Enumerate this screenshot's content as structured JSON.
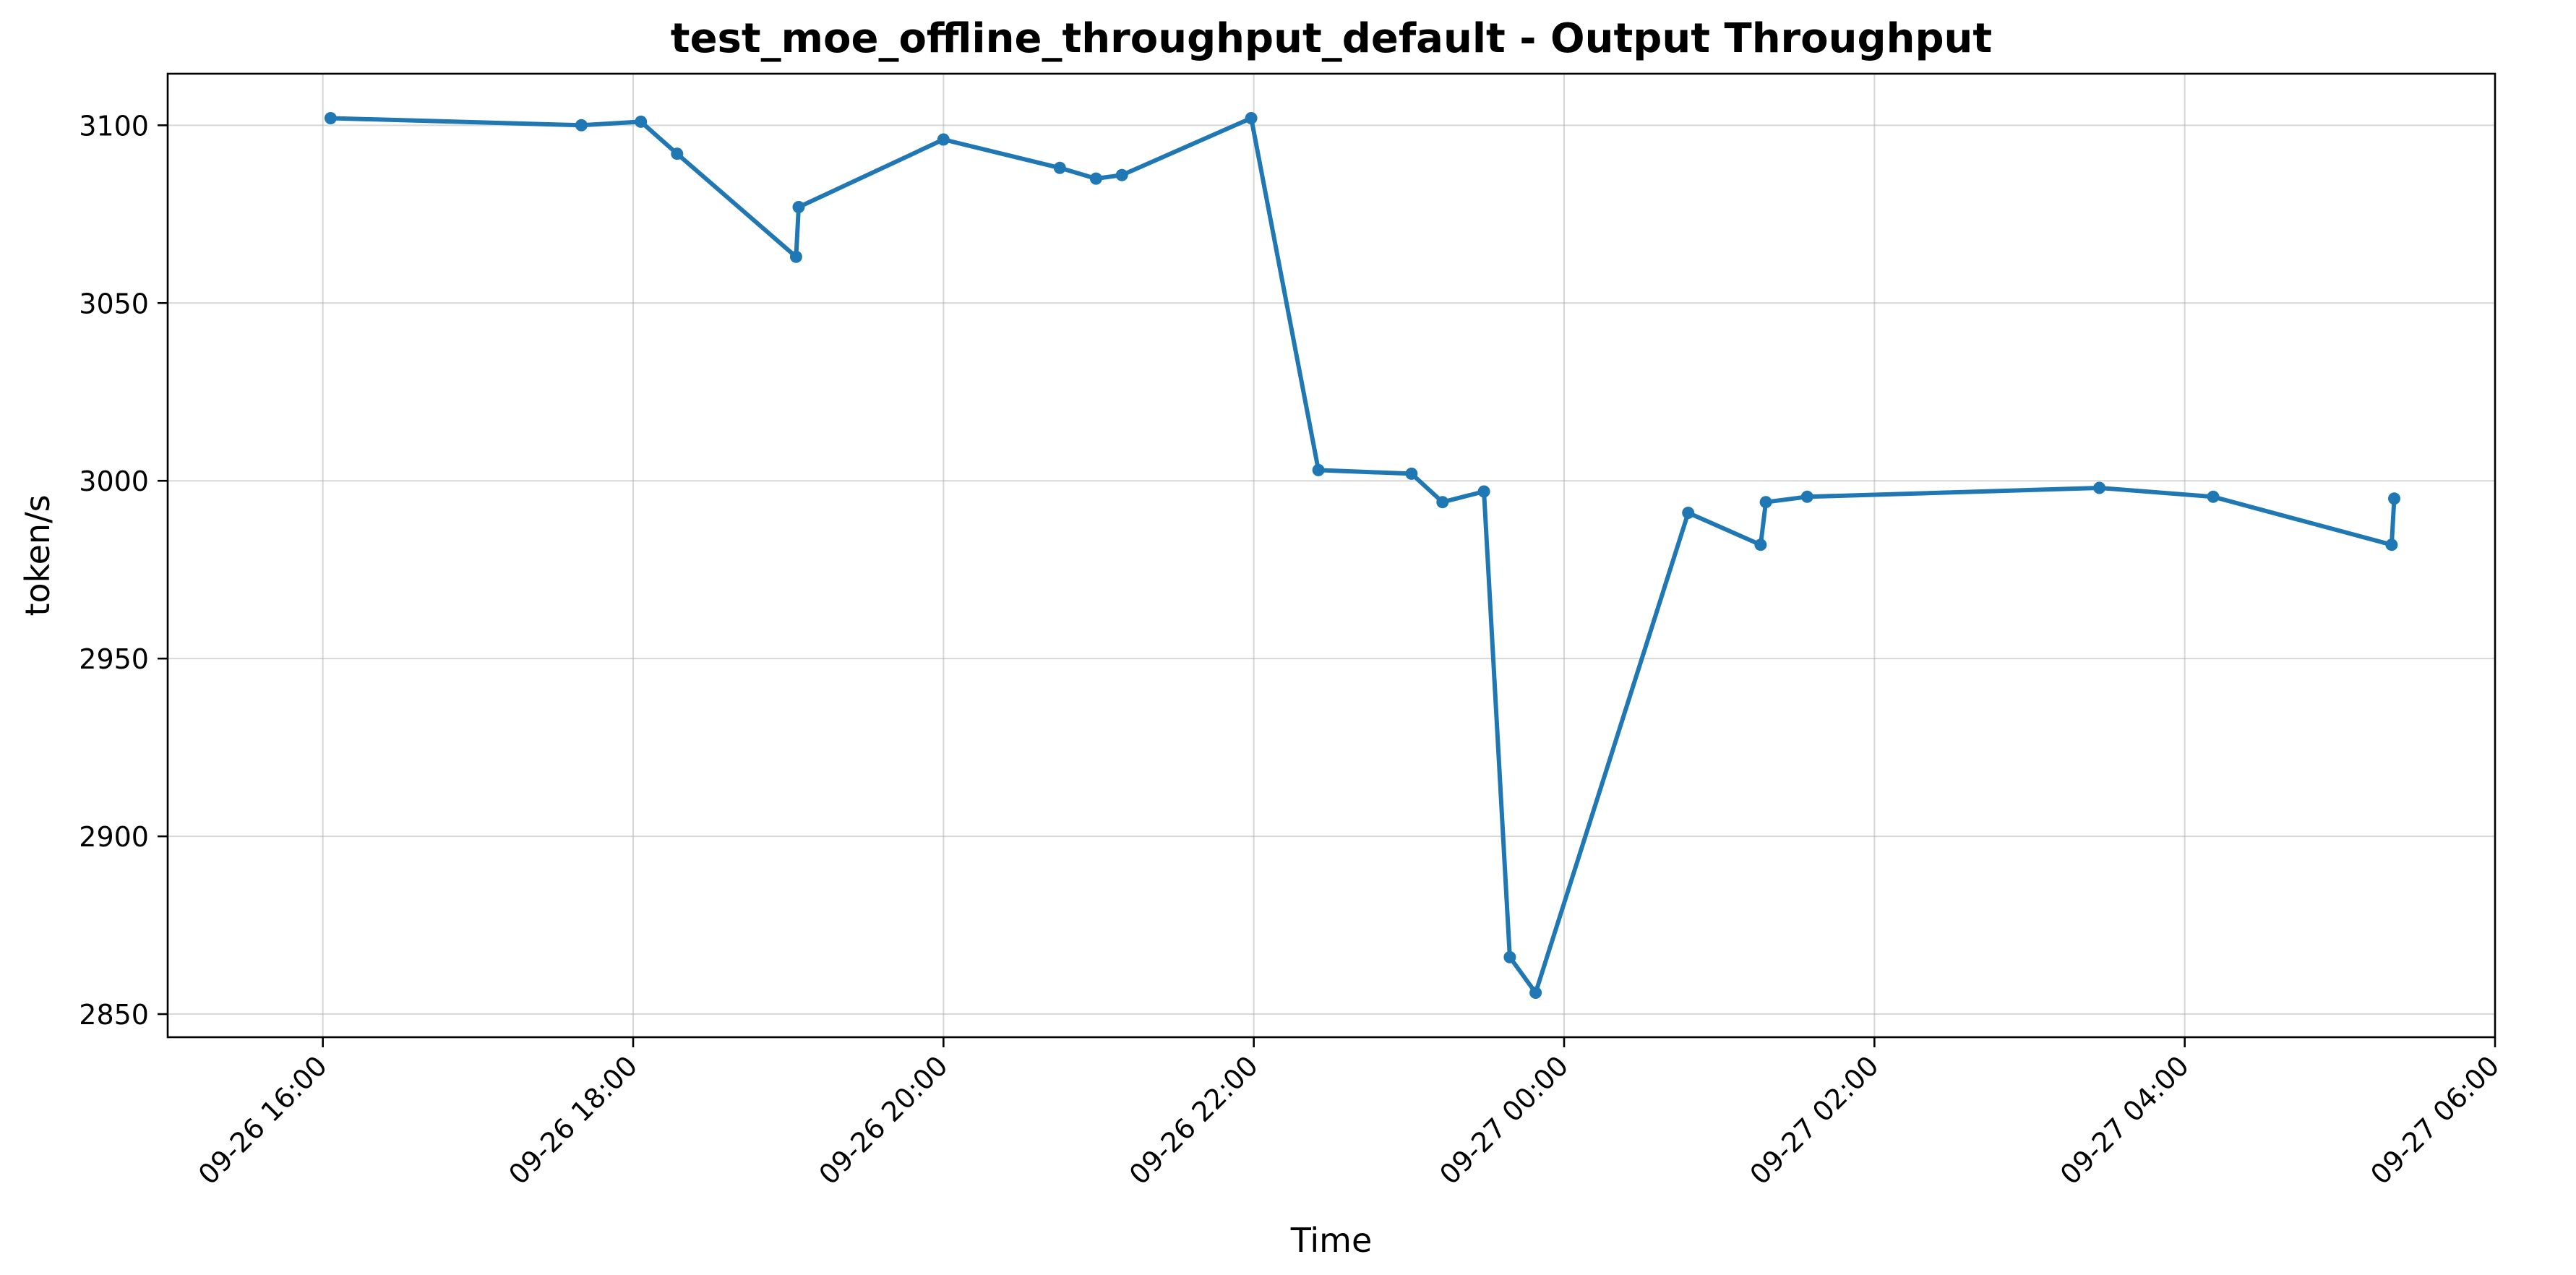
{
  "chart_data": {
    "type": "line",
    "title": "test_moe_offline_throughput_default - Output Throughput",
    "xlabel": "Time",
    "ylabel": "token/s",
    "ylim": [
      2843.5,
      3114.5
    ],
    "xlim": [
      "2025-09-26 15:00",
      "2025-09-27 06:00"
    ],
    "x_ticks": [
      "09-26 16:00",
      "09-26 18:00",
      "09-26 20:00",
      "09-26 22:00",
      "09-27 00:00",
      "09-27 02:00",
      "09-27 04:00",
      "09-27 06:00"
    ],
    "y_ticks": [
      2850,
      2900,
      2950,
      3000,
      3050,
      3100
    ],
    "grid": true,
    "legend": "none",
    "colors": {
      "line": "#1f77b4"
    },
    "series": [
      {
        "x": [
          "09-26 16:03",
          "09-26 17:40",
          "09-26 18:03",
          "09-26 18:17",
          "09-26 19:03",
          "09-26 19:04",
          "09-26 20:00",
          "09-26 20:45",
          "09-26 20:59",
          "09-26 21:09",
          "09-26 21:59",
          "09-26 22:25",
          "09-26 23:01",
          "09-26 23:13",
          "09-26 23:29",
          "09-26 23:39",
          "09-26 23:49",
          "09-27 00:48",
          "09-27 01:16",
          "09-27 01:18",
          "09-27 01:34",
          "09-27 03:27",
          "09-27 04:11",
          "09-27 05:20",
          "09-27 05:21"
        ],
        "values": [
          3102,
          3100,
          3101,
          3092,
          3063,
          3077,
          3096,
          3088,
          3085,
          3086,
          3102,
          3003,
          3002,
          2994,
          2997,
          2866,
          2856,
          2991,
          2982,
          2994,
          2995.5,
          2998,
          2995.5,
          2982,
          2995
        ]
      }
    ]
  }
}
